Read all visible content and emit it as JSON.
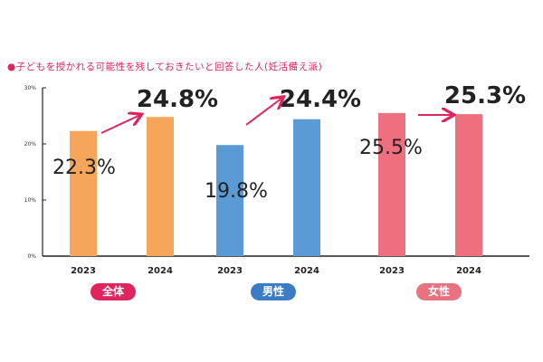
{
  "chart_data": {
    "type": "bar",
    "title": "●子どもを授かれる可能性を残しておきたいと回答した人(妊活備え派)",
    "categories": [
      "2023",
      "2024",
      "2023",
      "2024",
      "2023",
      "2024"
    ],
    "groups": [
      {
        "name": "全体",
        "color": "#f5a65b",
        "pill_color": "#e0245e",
        "values": [
          22.3,
          24.8
        ],
        "labels": [
          "22.3%",
          "24.8%"
        ]
      },
      {
        "name": "男性",
        "color": "#5b9bd5",
        "pill_color": "#3b7cc4",
        "values": [
          19.8,
          24.4
        ],
        "labels": [
          "19.8%",
          "24.4%"
        ]
      },
      {
        "name": "女性",
        "color": "#ee6f7e",
        "pill_color": "#e8727f",
        "values": [
          25.5,
          25.3
        ],
        "labels": [
          "25.5%",
          "25.3%"
        ]
      }
    ],
    "yticks": [
      "0%",
      "10%",
      "20%",
      "30%"
    ],
    "ylim": [
      0,
      30
    ],
    "arrow_color": "#e0245e",
    "grid": false
  }
}
